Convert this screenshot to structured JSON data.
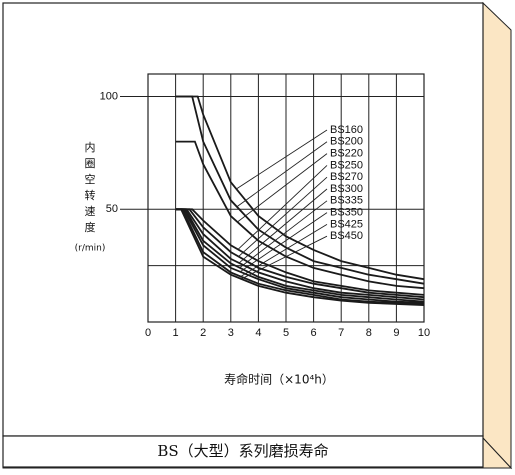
{
  "chart_data": {
    "type": "line",
    "title": "BS（大型）系列磨损寿命",
    "y_label_lines": [
      "内",
      "圈",
      "空",
      "转",
      "速",
      "度",
      "(r/min)"
    ],
    "x_label": "寿命时间（×10⁴h）",
    "xlim": [
      0,
      10
    ],
    "xticks": [
      0,
      1,
      2,
      3,
      4,
      5,
      6,
      7,
      8,
      9,
      10
    ],
    "ylim": [
      0,
      110
    ],
    "yticks": [
      50,
      100
    ],
    "ygrid": [
      25,
      50,
      100
    ],
    "grid": true,
    "color": "#1a1a1a",
    "series": [
      {
        "name": "BS160",
        "x": [
          1,
          1.8,
          2,
          3,
          4,
          5,
          6,
          7,
          8,
          9,
          10
        ],
        "values": [
          100,
          100,
          92,
          62,
          47,
          38,
          32,
          27,
          24,
          21,
          19
        ]
      },
      {
        "name": "BS200",
        "x": [
          1,
          1.6,
          2,
          3,
          4,
          5,
          6,
          7,
          8,
          9,
          10
        ],
        "values": [
          100,
          100,
          80,
          54,
          41,
          33,
          27,
          24,
          21,
          19,
          17
        ]
      },
      {
        "name": "BS220",
        "x": [
          1,
          1.7,
          2,
          3,
          4,
          5,
          6,
          7,
          8,
          9,
          10
        ],
        "values": [
          80,
          80,
          70,
          47,
          36,
          29,
          24,
          21,
          18,
          16,
          15
        ]
      },
      {
        "name": "BS250",
        "x": [
          1,
          1.6,
          2,
          3,
          4,
          5,
          6,
          7,
          8,
          9,
          10
        ],
        "values": [
          50,
          50,
          45,
          34,
          27,
          22,
          18,
          16,
          14,
          13,
          12
        ]
      },
      {
        "name": "BS270",
        "x": [
          1,
          1.5,
          2,
          3,
          4,
          5,
          6,
          7,
          8,
          9,
          10
        ],
        "values": [
          50,
          50,
          42,
          31,
          24,
          20,
          17,
          15,
          13,
          12,
          11
        ]
      },
      {
        "name": "BS300",
        "x": [
          1,
          1.4,
          2,
          3,
          4,
          5,
          6,
          7,
          8,
          9,
          10
        ],
        "values": [
          50,
          50,
          39,
          28,
          22,
          18,
          15,
          13,
          12,
          11,
          10
        ]
      },
      {
        "name": "BS335",
        "x": [
          1,
          1.35,
          2,
          3,
          4,
          5,
          6,
          7,
          8,
          9,
          10
        ],
        "values": [
          50,
          50,
          36,
          26,
          20,
          16,
          14,
          12,
          11,
          10,
          9
        ]
      },
      {
        "name": "BS350",
        "x": [
          1,
          1.3,
          2,
          3,
          4,
          5,
          6,
          7,
          8,
          9,
          10
        ],
        "values": [
          50,
          50,
          34,
          24,
          19,
          15,
          13,
          11,
          10,
          9,
          8.5
        ]
      },
      {
        "name": "BS425",
        "x": [
          1,
          1.25,
          2,
          3,
          4,
          5,
          6,
          7,
          8,
          9,
          10
        ],
        "values": [
          50,
          50,
          31,
          22,
          17,
          14,
          12,
          10,
          9,
          8.5,
          8
        ]
      },
      {
        "name": "BS450",
        "x": [
          1,
          1.2,
          2,
          3,
          4,
          5,
          6,
          7,
          8,
          9,
          10
        ],
        "values": [
          50,
          50,
          29,
          21,
          16,
          13,
          11,
          9.5,
          8.5,
          8,
          7.5
        ]
      }
    ]
  }
}
